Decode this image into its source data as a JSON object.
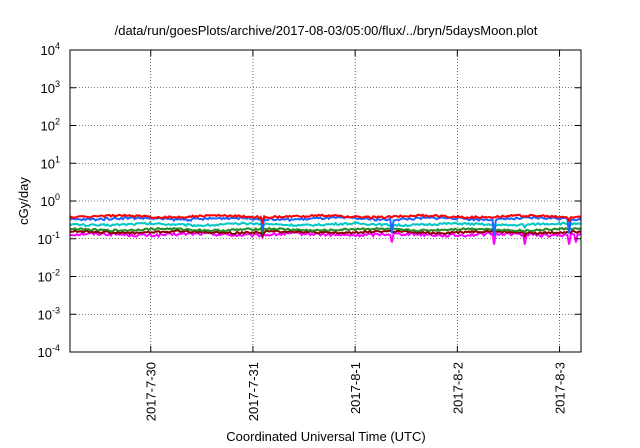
{
  "chart_data": {
    "type": "line",
    "title": "/data/run/goesPlots/archive/2017-08-03/05:00/flux/../bryn/5daysMoon.plot",
    "xlabel": "Coordinated Universal Time (UTC)",
    "ylabel": "cGy/day",
    "yscale": "log",
    "ylim": [
      0.0001,
      10000
    ],
    "xlim": [
      0,
      5
    ],
    "x_unit": "days since 2017-07-29 05:00 UTC",
    "y_ticks": [
      {
        "base": "10",
        "exp": "4",
        "value": 10000
      },
      {
        "base": "10",
        "exp": "3",
        "value": 1000
      },
      {
        "base": "10",
        "exp": "2",
        "value": 100
      },
      {
        "base": "10",
        "exp": "1",
        "value": 10
      },
      {
        "base": "10",
        "exp": "0",
        "value": 1
      },
      {
        "base": "10",
        "exp": "-1",
        "value": 0.1
      },
      {
        "base": "10",
        "exp": "-2",
        "value": 0.01
      },
      {
        "base": "10",
        "exp": "-3",
        "value": 0.001
      },
      {
        "base": "10",
        "exp": "-4",
        "value": 0.0001
      }
    ],
    "x_ticks": [
      {
        "label": "2017-7-30",
        "x": 0.79
      },
      {
        "label": "2017-7-31",
        "x": 1.79
      },
      {
        "label": "2017-8-1",
        "x": 2.79
      },
      {
        "label": "2017-8-2",
        "x": 3.79
      },
      {
        "label": "2017-8-3",
        "x": 4.79
      }
    ],
    "grid": true,
    "series": [
      {
        "color": "#ff00ff",
        "base": 0.13,
        "amp": 0.012,
        "dips": [
          [
            1.88,
            0.11
          ],
          [
            3.15,
            0.08
          ],
          [
            4.15,
            0.07
          ],
          [
            4.45,
            0.07
          ],
          [
            4.88,
            0.07
          ],
          [
            4.95,
            0.08
          ]
        ]
      },
      {
        "color": "#8b0000",
        "base": 0.15,
        "amp": 0.01,
        "dips": [
          [
            1.88,
            0.12
          ],
          [
            4.45,
            0.12
          ]
        ]
      },
      {
        "color": "#228b22",
        "base": 0.175,
        "amp": 0.01,
        "dips": [
          [
            1.88,
            0.15
          ],
          [
            4.45,
            0.15
          ]
        ]
      },
      {
        "color": "#00c8c8",
        "base": 0.24,
        "amp": 0.015,
        "dips": [
          [
            1.88,
            0.2
          ],
          [
            3.15,
            0.18
          ],
          [
            4.45,
            0.2
          ]
        ]
      },
      {
        "color": "#1e64ff",
        "base": 0.34,
        "amp": 0.025,
        "dips": [
          [
            1.88,
            0.17
          ],
          [
            3.15,
            0.14
          ],
          [
            4.15,
            0.12
          ],
          [
            4.88,
            0.14
          ]
        ]
      },
      {
        "color": "#ff0000",
        "base": 0.39,
        "amp": 0.025,
        "dips": [
          [
            1.88,
            0.28
          ],
          [
            4.88,
            0.3
          ]
        ]
      }
    ]
  }
}
